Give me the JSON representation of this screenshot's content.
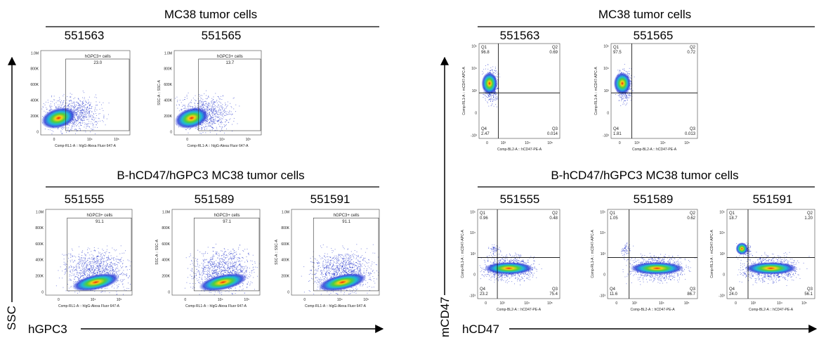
{
  "hgpc3_axes": {
    "yticks": [
      "1.0M",
      "800K",
      "600K",
      "400K",
      "200K",
      "0"
    ],
    "xticks": [
      "0",
      "10⁴",
      "10⁵"
    ],
    "xlabel": "Comp-RL1-A :: hIgG-Alexa Fluor   647-A",
    "ylabel": "SSC-A :: SSC-A",
    "gate_name": "hGPC3+ cells"
  },
  "cd47_axes": {
    "yticks": [
      "10⁵",
      "10⁴",
      "10³",
      "0",
      "-10³"
    ],
    "xticks": [
      "0",
      "10³",
      "10⁴",
      "10⁵"
    ],
    "xlabel": "Comp-BL2-A :: hCD47-PE-A",
    "ylabel": "Comp-RL1-A :: mCD47-APC-A",
    "quadrants": [
      "Q1",
      "Q2",
      "Q3",
      "Q4"
    ]
  },
  "left": {
    "y_axis": "SSC",
    "x_axis": "hGPC3",
    "groups": [
      {
        "title": "MC38 tumor cells",
        "plots": [
          {
            "sample": "551563",
            "gate": "23.0"
          },
          {
            "sample": "551565",
            "gate": "13.7"
          }
        ]
      },
      {
        "title": "B-hCD47/hGPC3 MC38 tumor cells",
        "plots": [
          {
            "sample": "551555",
            "gate": "91.1"
          },
          {
            "sample": "551589",
            "gate": "97.1"
          },
          {
            "sample": "551591",
            "gate": "91.1"
          }
        ]
      }
    ]
  },
  "right": {
    "y_axis": "mCD47",
    "x_axis": "hCD47",
    "groups": [
      {
        "title": "MC38 tumor cells",
        "plots": [
          {
            "sample": "551563",
            "q": [
              "96.8",
              "0.69",
              "0.014",
              "2.47"
            ]
          },
          {
            "sample": "551565",
            "q": [
              "97.5",
              "0.72",
              "0.013",
              "1.81"
            ]
          }
        ]
      },
      {
        "title": "B-hCD47/hGPC3 MC38 tumor cells",
        "plots": [
          {
            "sample": "551555",
            "q": [
              "0.96",
              "0.48",
              "75.4",
              "23.2"
            ]
          },
          {
            "sample": "551589",
            "q": [
              "1.05",
              "0.62",
              "86.7",
              "11.6"
            ]
          },
          {
            "sample": "551591",
            "q": [
              "18.7",
              "1.20",
              "56.1",
              "24.0"
            ]
          }
        ]
      }
    ]
  }
}
